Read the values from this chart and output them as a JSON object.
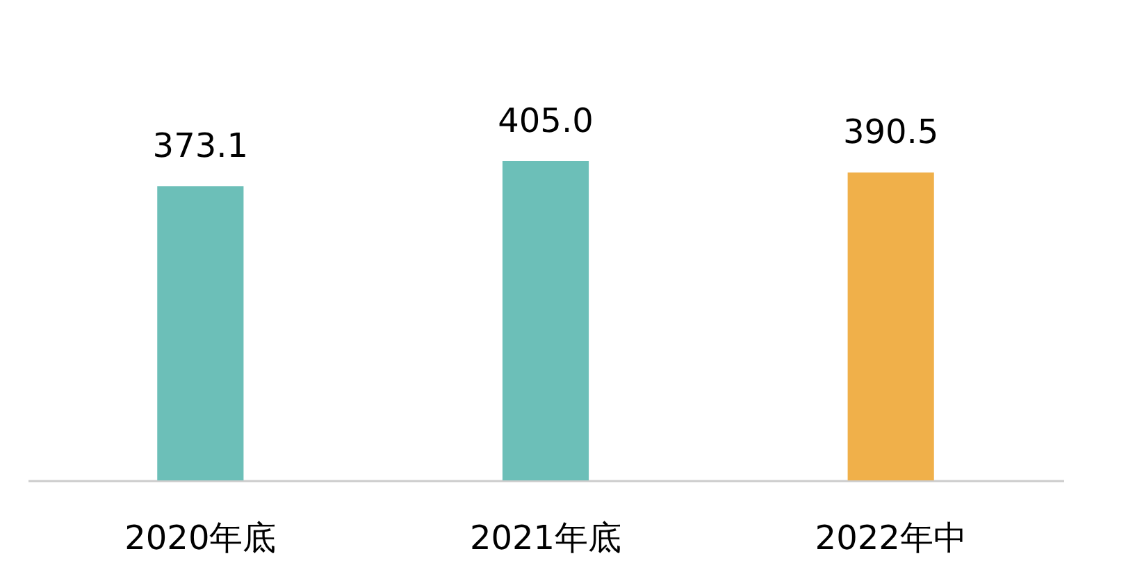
{
  "chart_data": {
    "type": "bar",
    "categories": [
      "2020年底",
      "2021年底",
      "2022年中"
    ],
    "values": [
      373.1,
      405.0,
      390.5
    ],
    "colors": [
      "#6cbfb8",
      "#6cbfb8",
      "#f0b04a"
    ],
    "value_labels": [
      "373.1",
      "405.0",
      "390.5"
    ],
    "tick_labels": "x"
  }
}
